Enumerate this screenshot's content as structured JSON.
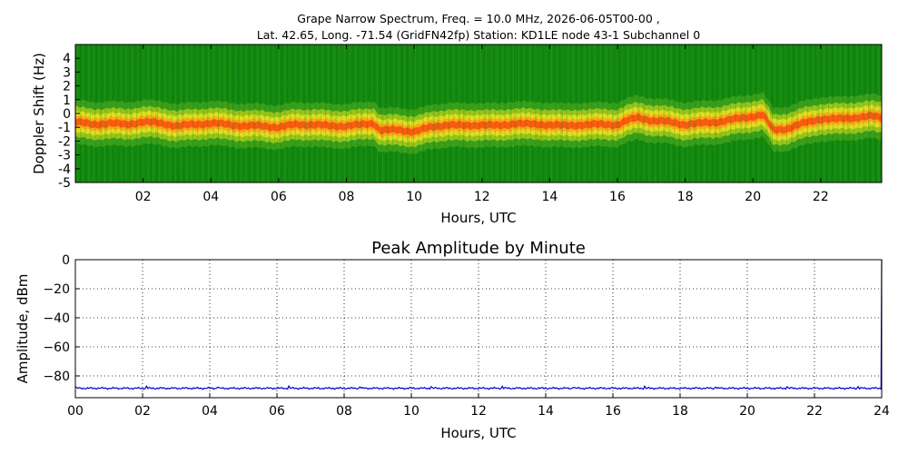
{
  "chart_data": [
    {
      "type": "heatmap",
      "title_line1": "Grape Narrow Spectrum, Freq. = 10.0 MHz, 2026-06-05T00-00 ,",
      "title_line2": "Lat.  42.65, Long. -71.54 (GridFN42fp) Station: KD1LE node 43-1 Subchannel 0",
      "xlabel": "Hours, UTC",
      "ylabel": "Doppler Shift (Hz)",
      "xlim": [
        0,
        23.8
      ],
      "ylim": [
        -5,
        5
      ],
      "x_ticks": [
        "02",
        "04",
        "06",
        "08",
        "10",
        "12",
        "14",
        "16",
        "18",
        "20",
        "22"
      ],
      "y_ticks": [
        "4",
        "3",
        "2",
        "1",
        "0",
        "-1",
        "-2",
        "-3",
        "-4",
        "-5"
      ],
      "colors": {
        "background": "#118811",
        "band_edge": "#e8e020",
        "band_core": "#ff5a10"
      },
      "doppler_trace": {
        "hours": [
          0,
          0.5,
          1,
          1.5,
          2,
          2.5,
          3,
          3.5,
          4,
          4.5,
          5,
          5.5,
          6,
          6.5,
          7,
          7.5,
          8,
          8.5,
          8.8,
          9,
          9.5,
          10,
          10.5,
          11,
          11.5,
          12,
          12.5,
          13,
          13.5,
          14,
          14.5,
          15,
          15.5,
          16,
          16.3,
          16.6,
          17,
          17.5,
          18,
          18.5,
          19,
          19.5,
          20,
          20.3,
          20.6,
          21,
          21.5,
          22,
          22.5,
          23,
          23.5,
          23.8
        ],
        "hz": [
          -0.6,
          -0.8,
          -0.7,
          -0.8,
          -0.6,
          -0.7,
          -0.9,
          -0.8,
          -0.7,
          -0.8,
          -0.9,
          -0.9,
          -1.0,
          -0.8,
          -0.8,
          -0.9,
          -0.9,
          -0.8,
          -0.7,
          -1.2,
          -1.2,
          -1.3,
          -1.0,
          -0.8,
          -0.9,
          -0.8,
          -0.9,
          -0.7,
          -0.8,
          -0.8,
          -0.9,
          -0.8,
          -0.8,
          -0.8,
          -0.5,
          -0.3,
          -0.5,
          -0.6,
          -0.8,
          -0.7,
          -0.6,
          -0.4,
          -0.2,
          -0.1,
          -1.2,
          -1.1,
          -0.7,
          -0.4,
          -0.4,
          -0.3,
          -0.2,
          -0.3
        ]
      }
    },
    {
      "type": "line",
      "title": "Peak Amplitude by Minute",
      "xlabel": "Hours, UTC",
      "ylabel": "Amplitude, dBm",
      "xlim": [
        0,
        24
      ],
      "ylim": [
        -95,
        0
      ],
      "x_ticks": [
        "00",
        "02",
        "04",
        "06",
        "08",
        "10",
        "12",
        "14",
        "16",
        "18",
        "20",
        "22",
        "24"
      ],
      "y_ticks": [
        "0",
        "−20",
        "−40",
        "−60",
        "−80"
      ],
      "grid": true,
      "series_color": "#0000cc",
      "baseline": -88.5,
      "final_spike": {
        "hour": 24,
        "value": 0
      }
    }
  ]
}
